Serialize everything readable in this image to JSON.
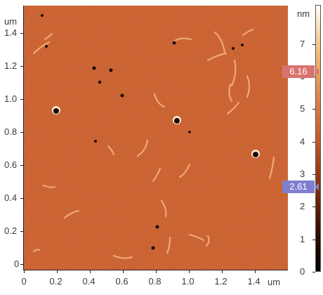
{
  "image": {
    "description_kind": "AFM height micrograph",
    "base_color": "#c75a2a",
    "scan_x_unit": "um",
    "scan_y_unit": "um"
  },
  "x_axis": {
    "unit": "um",
    "ticks": [
      "0",
      "0.2",
      "0.4",
      "0.6",
      "0.8",
      "1.0",
      "1.2",
      "1.4"
    ],
    "tick_values": [
      0,
      0.2,
      0.4,
      0.6,
      0.8,
      1.0,
      1.2,
      1.4
    ]
  },
  "y_axis": {
    "unit": "um",
    "ticks": [
      "0",
      "0.2",
      "0.4",
      "0.6",
      "0.8",
      "1.0",
      "1.2",
      "1.4"
    ],
    "tick_values": [
      0,
      0.2,
      0.4,
      0.6,
      0.8,
      1.0,
      1.2,
      1.4
    ]
  },
  "colorbar": {
    "unit": "nm",
    "ticks": [
      "0",
      "1",
      "2",
      "3",
      "4",
      "5",
      "6",
      "7"
    ],
    "tick_values": [
      0,
      1,
      2,
      3,
      4,
      5,
      6,
      7
    ],
    "range": [
      0,
      8.2
    ],
    "gradient_colors": [
      "#000000",
      "#3b0f02",
      "#8a3210",
      "#c75a2a",
      "#e08a4a",
      "#f3c07a",
      "#ffffff"
    ]
  },
  "cursors": {
    "upper": {
      "value": "6.16",
      "value_num": 6.16,
      "color": "#d97370"
    },
    "lower": {
      "value": "2.61",
      "value_num": 2.61,
      "color": "#7f7fd0"
    }
  }
}
